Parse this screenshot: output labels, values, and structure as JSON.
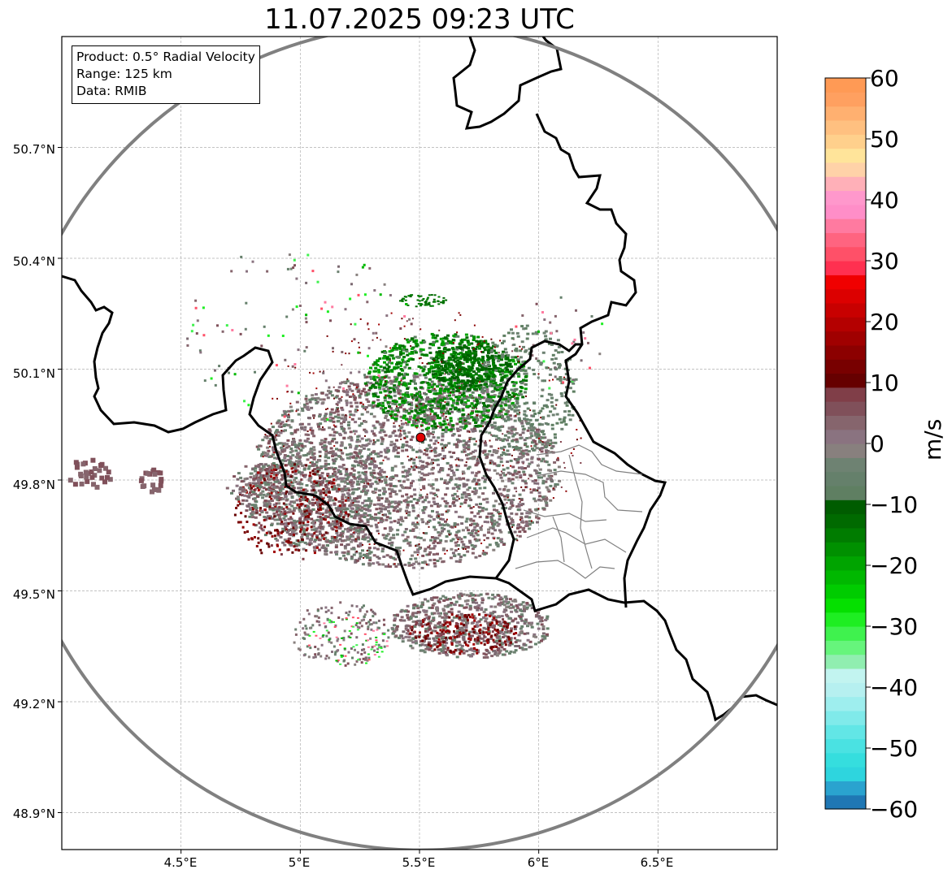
{
  "title": "11.07.2025 09:23 UTC",
  "info_box": {
    "product": "Product: 0.5° Radial Velocity",
    "range": "Range: 125 km",
    "data": "Data: RMIB"
  },
  "map": {
    "lat_labels": [
      "50.7°N",
      "50.4°N",
      "50.1°N",
      "49.8°N",
      "49.5°N",
      "49.2°N",
      "48.9°N"
    ],
    "lon_labels": [
      "4.5°E",
      "5°E",
      "5.5°E",
      "6°E",
      "6.5°E"
    ],
    "lat_values": [
      50.7,
      50.4,
      50.1,
      49.8,
      49.5,
      49.2,
      48.9
    ],
    "lon_values": [
      4.5,
      5.0,
      5.5,
      6.0,
      6.5
    ],
    "lon_range": [
      4.0,
      7.0
    ],
    "lat_range": [
      48.8,
      51.0
    ],
    "radar_site": {
      "lon": 5.505,
      "lat": 49.915
    },
    "range_ring_km": 125,
    "gridlines": true,
    "colors": {
      "range_ring": "#808080",
      "borders": "#000000",
      "sub_borders": "#808080",
      "radar_marker": "#e00000",
      "grid": "#b0b0b0"
    }
  },
  "colorbar": {
    "unit": "m/s",
    "ticks": [
      "60",
      "50",
      "40",
      "30",
      "20",
      "10",
      "0",
      "−10",
      "−20",
      "−30",
      "−40",
      "−50",
      "−60"
    ],
    "tick_values": [
      60,
      50,
      40,
      30,
      20,
      10,
      0,
      -10,
      -20,
      -30,
      -40,
      -50,
      -60
    ],
    "range": [
      -60,
      60
    ],
    "bands": [
      "#1f77b4",
      "#2aa3cf",
      "#2ed5de",
      "#35dede",
      "#4ae2e2",
      "#62e6e6",
      "#80eaea",
      "#9eeeee",
      "#b6f0f0",
      "#c2f4f0",
      "#90eeb0",
      "#66f57c",
      "#3ff24e",
      "#1eee22",
      "#05e000",
      "#00cc00",
      "#00b800",
      "#00a400",
      "#009000",
      "#007c00",
      "#006a00",
      "#005c00",
      "#5f7f62",
      "#65806b",
      "#6e8272",
      "#88807e",
      "#8a7380",
      "#86656d",
      "#80505a",
      "#803e48",
      "#660000",
      "#780000",
      "#8c0000",
      "#a00000",
      "#b40000",
      "#c80000",
      "#dc0000",
      "#f00000",
      "#ff3050",
      "#ff5068",
      "#ff6480",
      "#ff7aa0",
      "#ff8ec8",
      "#ff98cc",
      "#ffb0b8",
      "#ffd2a8",
      "#ffe49a",
      "#ffd08c",
      "#ffc080",
      "#ffb070",
      "#ffa060",
      "#ff9a55"
    ]
  }
}
